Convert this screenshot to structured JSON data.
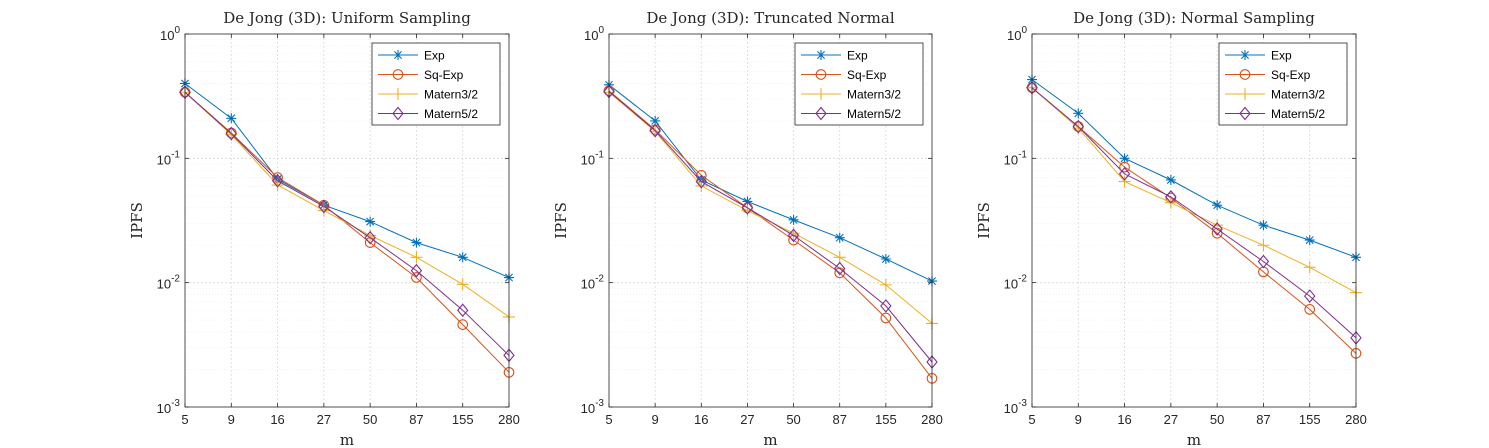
{
  "chart_data": [
    {
      "type": "line",
      "title": "De Jong (3D): Uniform Sampling",
      "xlabel": "m",
      "ylabel": "IPFS",
      "yscale": "log",
      "ylim": [
        0.001,
        1
      ],
      "x": [
        "5",
        "9",
        "16",
        "27",
        "50",
        "87",
        "155",
        "280"
      ],
      "yticks": [
        "10^0",
        "10^-1",
        "10^-2",
        "10^-3"
      ],
      "grid": true,
      "legend_position": "top-right",
      "series": [
        {
          "name": "Exp",
          "color": "#0072BD",
          "marker": "asterisk",
          "values": [
            0.4,
            0.21,
            0.068,
            0.042,
            0.031,
            0.021,
            0.016,
            0.011
          ]
        },
        {
          "name": "Sq-Exp",
          "color": "#D95319",
          "marker": "circle",
          "values": [
            0.34,
            0.16,
            0.07,
            0.042,
            0.021,
            0.011,
            0.0046,
            0.0019
          ]
        },
        {
          "name": "Matern3/2",
          "color": "#EDB120",
          "marker": "plus",
          "values": [
            0.34,
            0.155,
            0.061,
            0.038,
            0.024,
            0.016,
            0.0097,
            0.0053
          ]
        },
        {
          "name": "Matern5/2",
          "color": "#7E2F8E",
          "marker": "diamond",
          "values": [
            0.34,
            0.158,
            0.066,
            0.041,
            0.023,
            0.0125,
            0.006,
            0.0026
          ]
        }
      ]
    },
    {
      "type": "line",
      "title": "De Jong (3D): Truncated Normal",
      "xlabel": "m",
      "ylabel": "IPFS",
      "yscale": "log",
      "ylim": [
        0.001,
        1
      ],
      "x": [
        "5",
        "9",
        "16",
        "27",
        "50",
        "87",
        "155",
        "280"
      ],
      "yticks": [
        "10^0",
        "10^-1",
        "10^-2",
        "10^-3"
      ],
      "grid": true,
      "legend_position": "top-right",
      "series": [
        {
          "name": "Exp",
          "color": "#0072BD",
          "marker": "asterisk",
          "values": [
            0.39,
            0.2,
            0.067,
            0.045,
            0.032,
            0.023,
            0.0155,
            0.0103
          ]
        },
        {
          "name": "Sq-Exp",
          "color": "#D95319",
          "marker": "circle",
          "values": [
            0.35,
            0.17,
            0.073,
            0.04,
            0.022,
            0.012,
            0.0052,
            0.0017
          ]
        },
        {
          "name": "Matern3/2",
          "color": "#EDB120",
          "marker": "plus",
          "values": [
            0.34,
            0.165,
            0.06,
            0.038,
            0.025,
            0.016,
            0.0096,
            0.0047
          ]
        },
        {
          "name": "Matern5/2",
          "color": "#7E2F8E",
          "marker": "diamond",
          "values": [
            0.345,
            0.167,
            0.065,
            0.04,
            0.024,
            0.013,
            0.0065,
            0.0023
          ]
        }
      ]
    },
    {
      "type": "line",
      "title": "De Jong (3D): Normal Sampling",
      "xlabel": "m",
      "ylabel": "IPFS",
      "yscale": "log",
      "ylim": [
        0.001,
        1
      ],
      "x": [
        "5",
        "9",
        "16",
        "27",
        "50",
        "87",
        "155",
        "280"
      ],
      "yticks": [
        "10^0",
        "10^-1",
        "10^-2",
        "10^-3"
      ],
      "grid": true,
      "legend_position": "top-right",
      "series": [
        {
          "name": "Exp",
          "color": "#0072BD",
          "marker": "asterisk",
          "values": [
            0.43,
            0.23,
            0.1,
            0.067,
            0.042,
            0.029,
            0.022,
            0.016
          ]
        },
        {
          "name": "Sq-Exp",
          "color": "#D95319",
          "marker": "circle",
          "values": [
            0.37,
            0.18,
            0.085,
            0.048,
            0.025,
            0.0122,
            0.0061,
            0.0027
          ]
        },
        {
          "name": "Matern3/2",
          "color": "#EDB120",
          "marker": "plus",
          "values": [
            0.37,
            0.175,
            0.065,
            0.044,
            0.029,
            0.02,
            0.0133,
            0.0083
          ]
        },
        {
          "name": "Matern5/2",
          "color": "#7E2F8E",
          "marker": "diamond",
          "values": [
            0.37,
            0.18,
            0.075,
            0.049,
            0.027,
            0.0148,
            0.0078,
            0.0036
          ]
        }
      ]
    }
  ]
}
